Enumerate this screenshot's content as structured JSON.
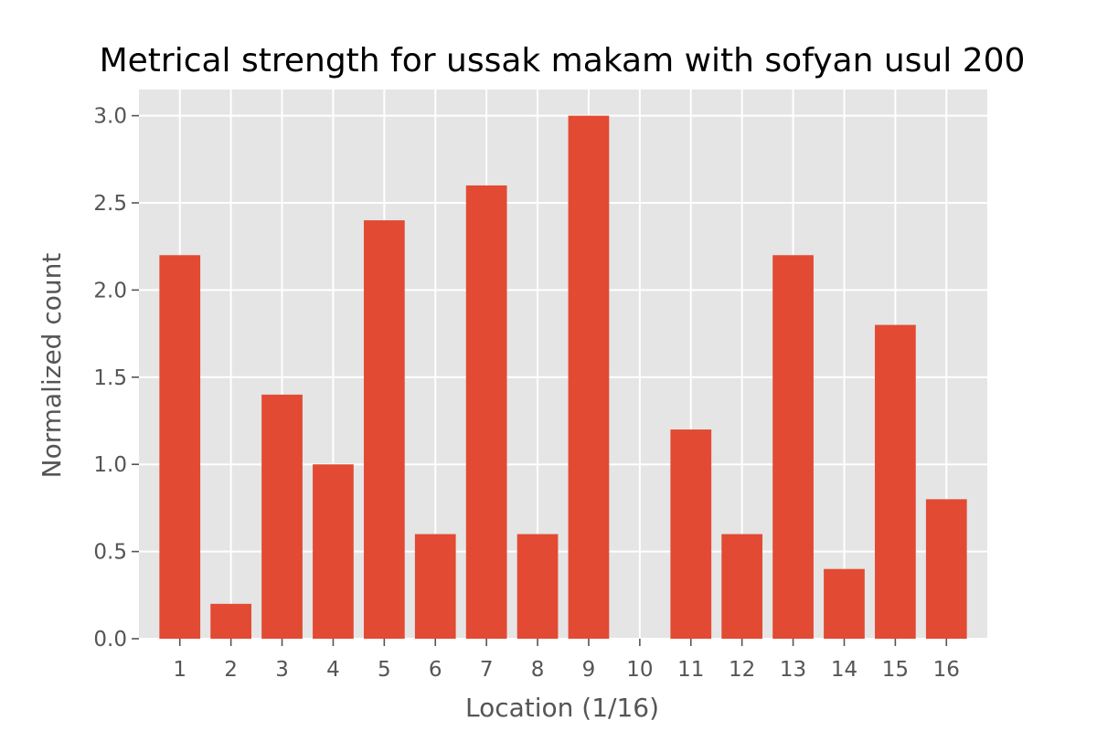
{
  "chart_data": {
    "type": "bar",
    "title": "Metrical strength for ussak makam with sofyan usul 200",
    "xlabel": "Location (1/16)",
    "ylabel": "Normalized count",
    "categories": [
      "1",
      "2",
      "3",
      "4",
      "5",
      "6",
      "7",
      "8",
      "9",
      "10",
      "11",
      "12",
      "13",
      "14",
      "15",
      "16"
    ],
    "values": [
      2.2,
      0.2,
      1.4,
      1.0,
      2.4,
      0.6,
      2.6,
      0.6,
      3.0,
      0.0,
      1.2,
      0.6,
      2.2,
      0.4,
      1.8,
      0.8
    ],
    "ylim": [
      0,
      3.15
    ],
    "yticks": [
      0.0,
      0.5,
      1.0,
      1.5,
      2.0,
      2.5,
      3.0
    ],
    "ytick_labels": [
      "0.0",
      "0.5",
      "1.0",
      "1.5",
      "2.0",
      "2.5",
      "3.0"
    ],
    "grid": true,
    "colors": {
      "bar": "#E24A33",
      "plot_background": "#E5E5E5",
      "grid": "#FFFFFF"
    }
  }
}
